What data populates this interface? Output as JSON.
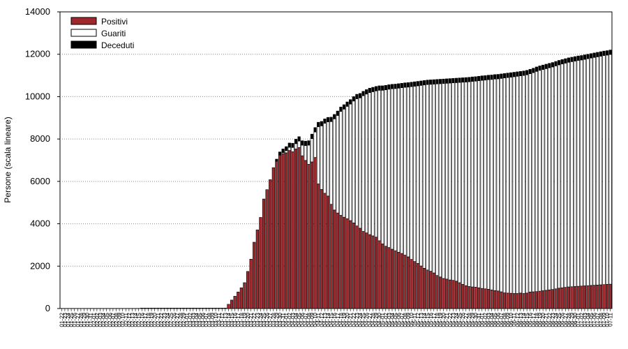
{
  "chart_data": {
    "type": "bar",
    "stacked": true,
    "ylabel": "Persone (scala lineare)",
    "ylim": [
      0,
      14000
    ],
    "yticks": [
      0,
      2000,
      4000,
      6000,
      8000,
      10000,
      12000,
      14000
    ],
    "grid": "horizontal dotted",
    "legend_position": "top-left",
    "categories": [
      "01-22",
      "01-23",
      "01-24",
      "01-25",
      "01-26",
      "01-27",
      "01-28",
      "01-29",
      "01-30",
      "01-31",
      "02-01",
      "02-02",
      "02-03",
      "02-04",
      "02-05",
      "02-06",
      "02-07",
      "02-08",
      "02-09",
      "02-10",
      "02-11",
      "02-12",
      "02-13",
      "02-14",
      "02-15",
      "02-16",
      "02-17",
      "02-18",
      "02-19",
      "02-20",
      "02-21",
      "02-22",
      "02-23",
      "02-24",
      "02-25",
      "02-26",
      "02-27",
      "02-28",
      "02-29",
      "03-01",
      "03-02",
      "03-03",
      "03-04",
      "03-05",
      "03-06",
      "03-07",
      "03-08",
      "03-09",
      "03-10",
      "03-11",
      "03-12",
      "03-13",
      "03-14",
      "03-15",
      "03-16",
      "03-17",
      "03-18",
      "03-19",
      "03-20",
      "03-21",
      "03-22",
      "03-23",
      "03-24",
      "03-25",
      "03-26",
      "03-27",
      "03-28",
      "03-29",
      "03-30",
      "03-31",
      "04-01",
      "04-02",
      "04-03",
      "04-04",
      "04-05",
      "04-06",
      "04-07",
      "04-08",
      "04-09",
      "04-10",
      "04-11",
      "04-12",
      "04-13",
      "04-14",
      "04-15",
      "04-16",
      "04-17",
      "04-18",
      "04-19",
      "04-20",
      "04-21",
      "04-22",
      "04-23",
      "04-24",
      "04-25",
      "04-26",
      "04-27",
      "04-28",
      "04-29",
      "04-30",
      "05-01",
      "05-02",
      "05-03",
      "05-04",
      "05-05",
      "05-06",
      "05-07",
      "05-08",
      "05-09",
      "05-10",
      "05-11",
      "05-12",
      "05-13",
      "05-14",
      "05-15",
      "05-16",
      "05-17",
      "05-18",
      "05-19",
      "05-20",
      "05-21",
      "05-22",
      "05-23",
      "05-24",
      "05-25",
      "05-26",
      "05-27",
      "05-28",
      "05-29",
      "05-30",
      "05-31",
      "06-01",
      "06-02",
      "06-03",
      "06-04",
      "06-05",
      "06-06",
      "06-07",
      "06-08",
      "06-09",
      "06-10",
      "06-11",
      "06-12",
      "06-13",
      "06-14",
      "06-15",
      "06-16",
      "06-17",
      "06-18",
      "06-19",
      "06-20",
      "06-21",
      "06-22",
      "06-23",
      "06-24",
      "06-25",
      "06-26",
      "06-27",
      "06-28",
      "06-29",
      "06-30",
      "07-01",
      "07-02",
      "07-03",
      "07-04",
      "07-05",
      "07-06",
      "07-07",
      "07-08",
      "07-09",
      "07-10",
      "07-11"
    ],
    "series": [
      {
        "name": "Positivi",
        "color": "#a0282d",
        "values": [
          0,
          0,
          0,
          0,
          0,
          0,
          0,
          0,
          0,
          0,
          0,
          0,
          0,
          0,
          0,
          0,
          0,
          0,
          0,
          0,
          0,
          0,
          0,
          0,
          0,
          20,
          20,
          20,
          20,
          20,
          20,
          20,
          20,
          20,
          20,
          20,
          20,
          20,
          20,
          20,
          20,
          20,
          20,
          20,
          20,
          20,
          20,
          20,
          20,
          20,
          20,
          20,
          200,
          400,
          580,
          780,
          980,
          1220,
          1750,
          2330,
          3130,
          3710,
          4300,
          5170,
          5610,
          6080,
          6650,
          6950,
          7240,
          7300,
          7350,
          7460,
          7400,
          7530,
          7600,
          7210,
          6990,
          6810,
          6920,
          7130,
          5880,
          5620,
          5440,
          5310,
          4920,
          4650,
          4510,
          4400,
          4310,
          4240,
          4150,
          4040,
          3900,
          3790,
          3640,
          3570,
          3490,
          3430,
          3370,
          3200,
          3050,
          2940,
          2880,
          2800,
          2730,
          2660,
          2600,
          2520,
          2440,
          2320,
          2220,
          2130,
          2010,
          1900,
          1820,
          1760,
          1680,
          1560,
          1490,
          1420,
          1390,
          1350,
          1330,
          1290,
          1220,
          1140,
          1080,
          1040,
          1020,
          1010,
          980,
          950,
          930,
          910,
          880,
          850,
          830,
          790,
          740,
          730,
          720,
          710,
          710,
          730,
          710,
          730,
          780,
          790,
          800,
          820,
          840,
          860,
          880,
          900,
          930,
          960,
          980,
          1000,
          1020,
          1030,
          1040,
          1050,
          1060,
          1070,
          1080,
          1090,
          1100,
          1110,
          1120,
          1130,
          1140,
          1150
        ]
      },
      {
        "name": "Guariti",
        "color": "#ffffff",
        "values": [
          0,
          0,
          0,
          0,
          0,
          0,
          0,
          0,
          0,
          0,
          0,
          0,
          0,
          0,
          0,
          0,
          0,
          0,
          0,
          0,
          0,
          0,
          0,
          0,
          0,
          0,
          0,
          0,
          0,
          0,
          0,
          0,
          0,
          0,
          0,
          0,
          0,
          0,
          0,
          0,
          0,
          0,
          0,
          0,
          0,
          0,
          0,
          0,
          0,
          0,
          0,
          0,
          0,
          0,
          0,
          0,
          0,
          0,
          0,
          0,
          0,
          0,
          0,
          0,
          0,
          0,
          0,
          0,
          0,
          50,
          100,
          150,
          200,
          250,
          300,
          500,
          700,
          900,
          1100,
          1200,
          2700,
          3000,
          3300,
          3500,
          3900,
          4300,
          4600,
          4900,
          5100,
          5300,
          5500,
          5750,
          6000,
          6150,
          6400,
          6550,
          6700,
          6800,
          6900,
          7100,
          7250,
          7380,
          7470,
          7570,
          7650,
          7740,
          7820,
          7920,
          8010,
          8150,
          8270,
          8380,
          8520,
          8650,
          8750,
          8820,
          8910,
          9040,
          9120,
          9200,
          9240,
          9290,
          9320,
          9370,
          9450,
          9540,
          9610,
          9660,
          9700,
          9720,
          9770,
          9820,
          9850,
          9890,
          9930,
          9980,
          10010,
          10070,
          10140,
          10170,
          10200,
          10230,
          10250,
          10250,
          10290,
          10300,
          10300,
          10340,
          10390,
          10420,
          10440,
          10460,
          10480,
          10500,
          10520,
          10540,
          10560,
          10580,
          10600,
          10620,
          10640,
          10660,
          10670,
          10690,
          10710,
          10730,
          10750,
          10770,
          10790,
          10810,
          10820,
          10840
        ]
      },
      {
        "name": "Deceduti",
        "color": "#000000",
        "values": [
          0,
          0,
          0,
          0,
          0,
          0,
          0,
          0,
          0,
          0,
          0,
          0,
          0,
          0,
          0,
          0,
          0,
          0,
          0,
          0,
          0,
          0,
          0,
          0,
          0,
          0,
          0,
          0,
          0,
          0,
          0,
          0,
          0,
          0,
          0,
          0,
          0,
          0,
          0,
          0,
          0,
          0,
          0,
          0,
          0,
          0,
          0,
          0,
          0,
          0,
          0,
          0,
          0,
          0,
          0,
          0,
          0,
          0,
          0,
          0,
          0,
          0,
          0,
          0,
          0,
          0,
          0,
          100,
          150,
          180,
          190,
          200,
          200,
          210,
          210,
          210,
          210,
          210,
          210,
          210,
          210,
          210,
          210,
          210,
          210,
          210,
          210,
          210,
          210,
          210,
          210,
          210,
          210,
          210,
          210,
          210,
          210,
          210,
          210,
          210,
          210,
          210,
          210,
          210,
          210,
          210,
          210,
          210,
          210,
          210,
          210,
          210,
          210,
          210,
          210,
          210,
          210,
          210,
          210,
          210,
          210,
          210,
          210,
          210,
          210,
          210,
          210,
          210,
          210,
          210,
          210,
          210,
          210,
          210,
          210,
          210,
          210,
          210,
          210,
          210,
          210,
          210,
          210,
          210,
          210,
          210,
          210,
          210,
          210,
          210,
          210,
          210,
          210,
          210,
          210,
          210,
          210,
          210,
          210,
          210,
          210,
          210,
          210,
          210,
          210,
          210,
          210,
          210,
          210,
          210,
          210,
          210
        ]
      }
    ]
  }
}
